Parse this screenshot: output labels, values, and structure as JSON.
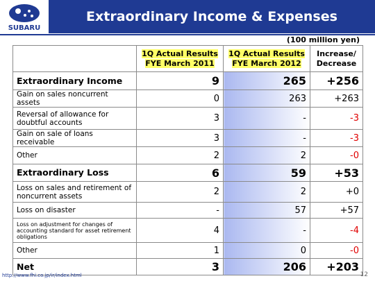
{
  "header": {
    "logo": "SUBARU",
    "title": "Extraordinary Income & Expenses"
  },
  "unit": "(100 million yen)",
  "table": {
    "columns": [
      [
        "1Q Actual Results",
        "FYE March 2011"
      ],
      [
        "1Q Actual Results",
        "FYE March 2012"
      ],
      [
        "Increase/",
        "Decrease"
      ]
    ],
    "rows": [
      {
        "label": "Extraordinary Income",
        "cells": [
          "9",
          "265",
          "+256"
        ],
        "bold": true
      },
      {
        "label": "Gain on sales noncurrent assets",
        "cells": [
          "0",
          "263",
          "+263"
        ]
      },
      {
        "label": "Reversal of allowance for doubtful accounts",
        "cells": [
          "3",
          "-",
          "-3"
        ]
      },
      {
        "label": "Gain on sale of loans receivable",
        "cells": [
          "3",
          "-",
          "-3"
        ]
      },
      {
        "label": "Other",
        "cells": [
          "2",
          "2",
          "-0"
        ]
      },
      {
        "label": "Extraordinary Loss",
        "cells": [
          "6",
          "59",
          "+53"
        ],
        "bold": true
      },
      {
        "label": "Loss on sales and retirement of noncurrent assets",
        "cells": [
          "2",
          "2",
          "+0"
        ]
      },
      {
        "label": "Loss on disaster",
        "cells": [
          "-",
          "57",
          "+57"
        ]
      },
      {
        "label": "Loss on adjustment for changes of accounting standard for asset retirement obligations",
        "cells": [
          "4",
          "-",
          "-4"
        ]
      },
      {
        "label": "Other",
        "cells": [
          "1",
          "0",
          "-0"
        ]
      },
      {
        "label": "Net",
        "cells": [
          "3",
          "206",
          "+203"
        ],
        "bold": true
      }
    ]
  },
  "footer": {
    "url": "http://www.fhi.co.jp/ir/index.html",
    "page": "12"
  }
}
